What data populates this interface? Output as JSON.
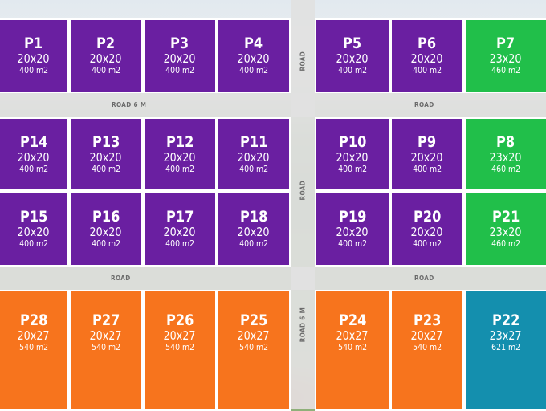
{
  "colors": {
    "standard": "#6a1fa1",
    "corner": "#21bf4a",
    "large": "#f7741d",
    "large_corner": "#148fae"
  },
  "roads": {
    "top_left_label": "ROAD 6 M",
    "top_right_label": "ROAD",
    "bottom_left_label": "ROAD",
    "bottom_right_label": "ROAD",
    "vertical_top_label": "ROAD",
    "vertical_middle_label": "ROAD",
    "vertical_bottom_label": "ROAD 6 M"
  },
  "plots": [
    {
      "id": "P1",
      "dim": "20x20",
      "area": "400 m2",
      "type": "standard"
    },
    {
      "id": "P2",
      "dim": "20x20",
      "area": "400 m2",
      "type": "standard"
    },
    {
      "id": "P3",
      "dim": "20x20",
      "area": "400 m2",
      "type": "standard"
    },
    {
      "id": "P4",
      "dim": "20x20",
      "area": "400 m2",
      "type": "standard"
    },
    {
      "id": "P5",
      "dim": "20x20",
      "area": "400 m2",
      "type": "standard"
    },
    {
      "id": "P6",
      "dim": "20x20",
      "area": "400 m2",
      "type": "standard"
    },
    {
      "id": "P7",
      "dim": "23x20",
      "area": "460 m2",
      "type": "corner"
    },
    {
      "id": "P14",
      "dim": "20x20",
      "area": "400 m2",
      "type": "standard"
    },
    {
      "id": "P13",
      "dim": "20x20",
      "area": "400 m2",
      "type": "standard"
    },
    {
      "id": "P12",
      "dim": "20x20",
      "area": "400 m2",
      "type": "standard"
    },
    {
      "id": "P11",
      "dim": "20x20",
      "area": "400 m2",
      "type": "standard"
    },
    {
      "id": "P10",
      "dim": "20x20",
      "area": "400 m2",
      "type": "standard"
    },
    {
      "id": "P9",
      "dim": "20x20",
      "area": "400 m2",
      "type": "standard"
    },
    {
      "id": "P8",
      "dim": "23x20",
      "area": "460 m2",
      "type": "corner"
    },
    {
      "id": "P15",
      "dim": "20x20",
      "area": "400 m2",
      "type": "standard"
    },
    {
      "id": "P16",
      "dim": "20x20",
      "area": "400 m2",
      "type": "standard"
    },
    {
      "id": "P17",
      "dim": "20x20",
      "area": "400 m2",
      "type": "standard"
    },
    {
      "id": "P18",
      "dim": "20x20",
      "area": "400 m2",
      "type": "standard"
    },
    {
      "id": "P19",
      "dim": "20x20",
      "area": "400 m2",
      "type": "standard"
    },
    {
      "id": "P20",
      "dim": "20x20",
      "area": "400 m2",
      "type": "standard"
    },
    {
      "id": "P21",
      "dim": "23x20",
      "area": "460 m2",
      "type": "corner"
    },
    {
      "id": "P28",
      "dim": "20x27",
      "area": "540 m2",
      "type": "large"
    },
    {
      "id": "P27",
      "dim": "20x27",
      "area": "540 m2",
      "type": "large"
    },
    {
      "id": "P26",
      "dim": "20x27",
      "area": "540 m2",
      "type": "large"
    },
    {
      "id": "P25",
      "dim": "20x27",
      "area": "540 m2",
      "type": "large"
    },
    {
      "id": "P24",
      "dim": "20x27",
      "area": "540 m2",
      "type": "large"
    },
    {
      "id": "P23",
      "dim": "20x27",
      "area": "540 m2",
      "type": "large"
    },
    {
      "id": "P22",
      "dim": "23x27",
      "area": "621 m2",
      "type": "large_corner"
    }
  ]
}
